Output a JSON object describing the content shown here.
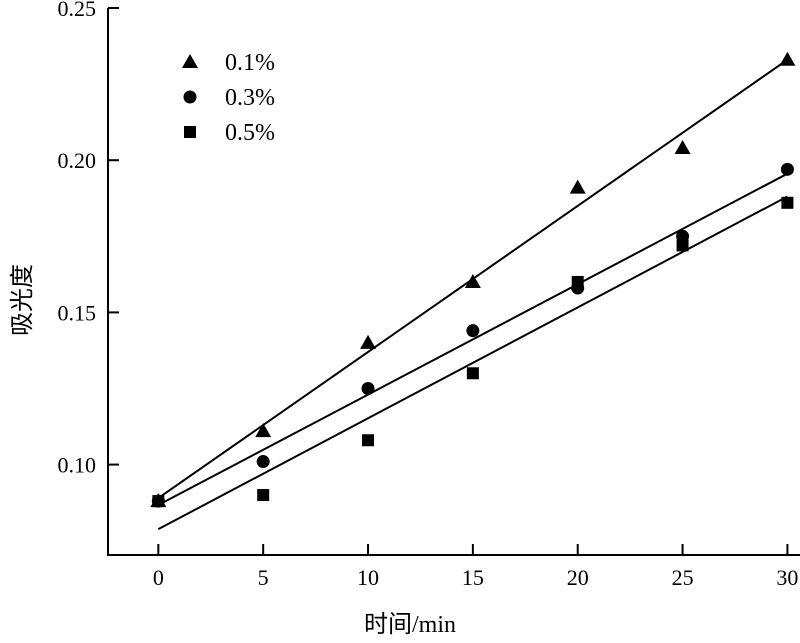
{
  "chart_data": {
    "type": "scatter",
    "title": "",
    "xlabel": "时间/min",
    "ylabel": "吸光度",
    "x": [
      0,
      5,
      10,
      15,
      20,
      25,
      30
    ],
    "xlim": [
      -2.4,
      30.6
    ],
    "ylim": [
      0.0703,
      0.25
    ],
    "xticks": [
      "0",
      "5",
      "10",
      "15",
      "20",
      "25",
      "30"
    ],
    "xtick_values": [
      0,
      5,
      10,
      15,
      20,
      25,
      30
    ],
    "yticks": [
      "0.10",
      "0.15",
      "0.20",
      "0.25"
    ],
    "ytick_values": [
      0.1,
      0.15,
      0.2,
      0.25
    ],
    "grid": false,
    "legend_position": "top-left",
    "series": [
      {
        "name": "0.1%",
        "marker": "triangle",
        "values": [
          0.088,
          0.111,
          0.14,
          0.16,
          0.191,
          0.204,
          0.233
        ],
        "fit": "linear"
      },
      {
        "name": "0.3%",
        "marker": "circle",
        "values": [
          0.088,
          0.101,
          0.125,
          0.144,
          0.158,
          0.175,
          0.197
        ],
        "fit": "linear"
      },
      {
        "name": "0.5%",
        "marker": "square",
        "values": [
          0.088,
          0.09,
          0.108,
          0.13,
          0.16,
          0.172,
          0.186
        ],
        "fit": "linear"
      }
    ],
    "color": "#000000"
  }
}
